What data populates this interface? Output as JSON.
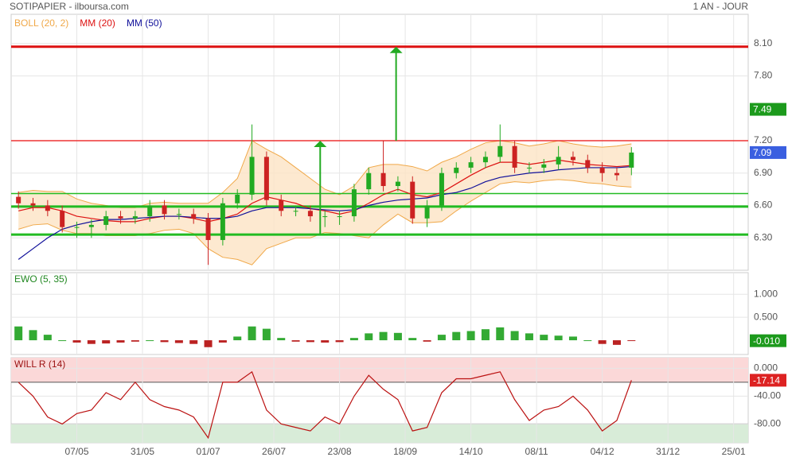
{
  "chart_data": [
    {
      "type": "candlestick",
      "title": "SOTIPAPIER - ilboursa.com",
      "subtitle": "1 AN - JOUR",
      "x": [
        2,
        6,
        10,
        14,
        18,
        22,
        26,
        30,
        34,
        38,
        42,
        46,
        50,
        54,
        58,
        62,
        66,
        70,
        74,
        78,
        82,
        86,
        90,
        94,
        98,
        102,
        106,
        110,
        114,
        118,
        122,
        126,
        130,
        134,
        138,
        142,
        146,
        150,
        154,
        158,
        162,
        166,
        170
      ],
      "open": [
        6.68,
        6.62,
        6.6,
        6.55,
        6.4,
        6.4,
        6.42,
        6.5,
        6.48,
        6.5,
        6.6,
        6.52,
        6.52,
        6.48,
        6.28,
        6.62,
        6.7,
        7.05,
        6.65,
        6.55,
        6.55,
        6.5,
        6.5,
        6.5,
        6.75,
        6.9,
        6.78,
        6.82,
        6.48,
        6.6,
        6.9,
        6.95,
        7.0,
        7.05,
        7.15,
        6.95,
        6.95,
        6.98,
        7.05,
        7.02,
        6.95,
        6.9,
        6.95
      ],
      "high": [
        6.73,
        6.67,
        6.65,
        6.6,
        6.45,
        6.47,
        6.55,
        6.55,
        6.55,
        6.65,
        6.65,
        6.57,
        6.57,
        6.53,
        6.67,
        6.75,
        7.35,
        7.1,
        6.7,
        6.6,
        6.6,
        6.55,
        6.55,
        6.8,
        6.95,
        7.2,
        6.87,
        6.87,
        6.65,
        6.95,
        7.0,
        7.05,
        7.1,
        7.35,
        7.2,
        7.0,
        7.03,
        7.15,
        7.1,
        7.07,
        7.0,
        6.95,
        7.14
      ],
      "low": [
        6.57,
        6.55,
        6.5,
        6.35,
        6.3,
        6.3,
        6.37,
        6.43,
        6.43,
        6.45,
        6.47,
        6.47,
        6.43,
        6.05,
        6.23,
        6.57,
        6.65,
        6.6,
        6.5,
        6.5,
        6.45,
        6.4,
        6.42,
        6.45,
        6.7,
        6.73,
        6.73,
        6.43,
        6.4,
        6.55,
        6.85,
        6.9,
        6.95,
        7.0,
        6.9,
        6.9,
        6.9,
        6.93,
        6.97,
        6.9,
        6.82,
        6.83,
        6.88
      ],
      "close": [
        6.62,
        6.6,
        6.55,
        6.4,
        6.4,
        6.42,
        6.5,
        6.48,
        6.5,
        6.6,
        6.52,
        6.52,
        6.48,
        6.28,
        6.62,
        6.7,
        7.05,
        6.65,
        6.55,
        6.55,
        6.5,
        6.5,
        6.5,
        6.75,
        6.9,
        6.78,
        6.82,
        6.48,
        6.6,
        6.9,
        6.95,
        7.0,
        7.05,
        7.15,
        6.95,
        6.95,
        6.98,
        7.05,
        7.02,
        6.95,
        6.9,
        6.88,
        7.09
      ],
      "up_color": "#22aa22",
      "down_color": "#cc2222",
      "series": [
        {
          "name": "BOLL (20, 2)",
          "color": "#f0a848",
          "upper": [
            6.72,
            6.74,
            6.73,
            6.73,
            6.66,
            6.62,
            6.6,
            6.58,
            6.58,
            6.62,
            6.63,
            6.62,
            6.62,
            6.62,
            6.72,
            6.85,
            7.2,
            7.12,
            7.05,
            6.95,
            6.85,
            6.75,
            6.7,
            6.78,
            6.95,
            6.98,
            6.98,
            6.96,
            6.92,
            7.0,
            7.05,
            7.12,
            7.18,
            7.2,
            7.18,
            7.15,
            7.17,
            7.2,
            7.17,
            7.15,
            7.14,
            7.15,
            7.17
          ],
          "lower": [
            6.38,
            6.42,
            6.43,
            6.37,
            6.34,
            6.34,
            6.32,
            6.32,
            6.32,
            6.34,
            6.37,
            6.38,
            6.34,
            6.2,
            6.12,
            6.1,
            6.05,
            6.2,
            6.25,
            6.3,
            6.3,
            6.35,
            6.34,
            6.32,
            6.3,
            6.42,
            6.52,
            6.44,
            6.44,
            6.45,
            6.55,
            6.64,
            6.72,
            6.8,
            6.82,
            6.81,
            6.83,
            6.84,
            6.83,
            6.81,
            6.8,
            6.78,
            6.77
          ]
        },
        {
          "name": "MM (20)",
          "color": "#dd1111",
          "values": [
            6.55,
            6.58,
            6.58,
            6.55,
            6.5,
            6.48,
            6.46,
            6.45,
            6.45,
            6.48,
            6.5,
            6.5,
            6.48,
            6.45,
            6.48,
            6.52,
            6.62,
            6.68,
            6.65,
            6.62,
            6.57,
            6.55,
            6.52,
            6.55,
            6.62,
            6.7,
            6.75,
            6.7,
            6.68,
            6.72,
            6.8,
            6.88,
            6.95,
            7.0,
            7.0,
            6.98,
            7.0,
            7.02,
            7.0,
            6.98,
            6.97,
            6.96,
            6.97
          ]
        },
        {
          "name": "MM (50)",
          "color": "#10109a",
          "values": [
            6.1,
            6.2,
            6.3,
            6.38,
            6.42,
            6.45,
            6.47,
            6.47,
            6.48,
            6.49,
            6.5,
            6.5,
            6.49,
            6.48,
            6.48,
            6.5,
            6.55,
            6.58,
            6.58,
            6.58,
            6.57,
            6.56,
            6.55,
            6.56,
            6.6,
            6.63,
            6.65,
            6.66,
            6.67,
            6.7,
            6.72,
            6.76,
            6.82,
            6.86,
            6.88,
            6.9,
            6.91,
            6.93,
            6.94,
            6.95,
            6.95,
            6.95,
            6.96
          ]
        }
      ],
      "xlim": [
        0,
        202
      ],
      "ylim": [
        6.0,
        8.37
      ],
      "yticks": [
        {
          "value": 6.3,
          "label": "6.30"
        },
        {
          "value": 6.6,
          "label": "6.60"
        },
        {
          "value": 6.9,
          "label": "6.90"
        },
        {
          "value": 7.2,
          "label": "7.20"
        },
        {
          "value": 7.8,
          "label": "7.80"
        },
        {
          "value": 8.1,
          "label": "8.10"
        }
      ],
      "levels": [
        {
          "value": 8.07,
          "color": "#dd1111",
          "thick": true
        },
        {
          "value": 7.2,
          "color": "#ee3333",
          "thick": false
        },
        {
          "value": 6.71,
          "color": "#22bb22",
          "thick": false
        },
        {
          "value": 6.59,
          "color": "#22bb22",
          "thick": true
        },
        {
          "value": 6.33,
          "color": "#22bb22",
          "thick": true
        }
      ],
      "arrows": [
        {
          "x": 84.7,
          "from": 6.33,
          "to": 7.2,
          "color": "#22aa22"
        },
        {
          "x": 105.5,
          "from": 7.2,
          "to": 8.07,
          "color": "#22aa22"
        }
      ],
      "tags": [
        {
          "value": 7.49,
          "color": "#1c9a1c"
        },
        {
          "value": 7.09,
          "color": "#3a5fe0"
        }
      ]
    },
    {
      "type": "bar",
      "title": "EWO (5, 35)",
      "x": [
        2,
        6,
        10,
        14,
        18,
        22,
        26,
        30,
        34,
        38,
        42,
        46,
        50,
        54,
        58,
        62,
        66,
        70,
        74,
        78,
        82,
        86,
        90,
        94,
        98,
        102,
        106,
        110,
        114,
        118,
        122,
        126,
        130,
        134,
        138,
        142,
        146,
        150,
        154,
        158,
        162,
        166,
        170
      ],
      "values": [
        0.3,
        0.22,
        0.12,
        0.0,
        -0.05,
        -0.08,
        -0.07,
        -0.05,
        -0.03,
        0.0,
        -0.04,
        -0.06,
        -0.08,
        -0.15,
        -0.05,
        0.08,
        0.3,
        0.25,
        0.05,
        -0.03,
        -0.04,
        -0.05,
        -0.04,
        0.05,
        0.15,
        0.18,
        0.16,
        0.05,
        -0.03,
        0.12,
        0.18,
        0.2,
        0.24,
        0.28,
        0.2,
        0.15,
        0.12,
        0.1,
        0.08,
        0.0,
        -0.08,
        -0.1,
        -0.01
      ],
      "up_color": "#33aa33",
      "down_color": "#bb2222",
      "title_color": "#228822",
      "xlim": [
        0,
        202
      ],
      "ylim": [
        -0.31,
        1.47
      ],
      "yticks": [
        {
          "value": 0.5,
          "label": "0.500"
        },
        {
          "value": 1.0,
          "label": "1.000"
        }
      ],
      "tags": [
        {
          "value": -0.01,
          "label": "-0.010",
          "color": "#1c9a1c"
        }
      ]
    },
    {
      "type": "line",
      "title": "WILL R (14)",
      "x": [
        2,
        6,
        10,
        14,
        18,
        22,
        26,
        30,
        34,
        38,
        42,
        46,
        50,
        54,
        58,
        62,
        66,
        70,
        74,
        78,
        82,
        86,
        90,
        94,
        98,
        102,
        106,
        110,
        114,
        118,
        122,
        126,
        130,
        134,
        138,
        142,
        146,
        150,
        154,
        158,
        162,
        166,
        170
      ],
      "values": [
        -20,
        -40,
        -70,
        -80,
        -65,
        -60,
        -35,
        -45,
        -20,
        -45,
        -55,
        -60,
        -70,
        -100,
        -20,
        -20,
        -5,
        -60,
        -80,
        -85,
        -90,
        -70,
        -80,
        -40,
        -10,
        -30,
        -45,
        -90,
        -85,
        -35,
        -15,
        -15,
        -10,
        -5,
        -45,
        -75,
        -60,
        -55,
        -40,
        -60,
        -90,
        -75,
        -17.14
      ],
      "color": "#bb1111",
      "title_color": "#991111",
      "overbought": -20,
      "oversold": -80,
      "xlim": [
        0,
        202
      ],
      "ylim": [
        -107,
        15.3
      ],
      "yticks": [
        {
          "value": -80,
          "label": "-80.00"
        },
        {
          "value": -40,
          "label": "-40.00"
        },
        {
          "value": 0,
          "label": "0.000"
        }
      ],
      "xticks": [
        {
          "value": 18,
          "label": "07/05"
        },
        {
          "value": 36,
          "label": "31/05"
        },
        {
          "value": 54,
          "label": "01/07"
        },
        {
          "value": 72,
          "label": "26/07"
        },
        {
          "value": 90,
          "label": "23/08"
        },
        {
          "value": 108,
          "label": "18/09"
        },
        {
          "value": 126,
          "label": "14/10"
        },
        {
          "value": 144,
          "label": "08/11"
        },
        {
          "value": 162,
          "label": "04/12"
        },
        {
          "value": 180,
          "label": "31/12"
        },
        {
          "value": 198,
          "label": "25/01"
        }
      ],
      "tags": [
        {
          "value": -17.14,
          "color": "#dd2222"
        }
      ]
    }
  ]
}
